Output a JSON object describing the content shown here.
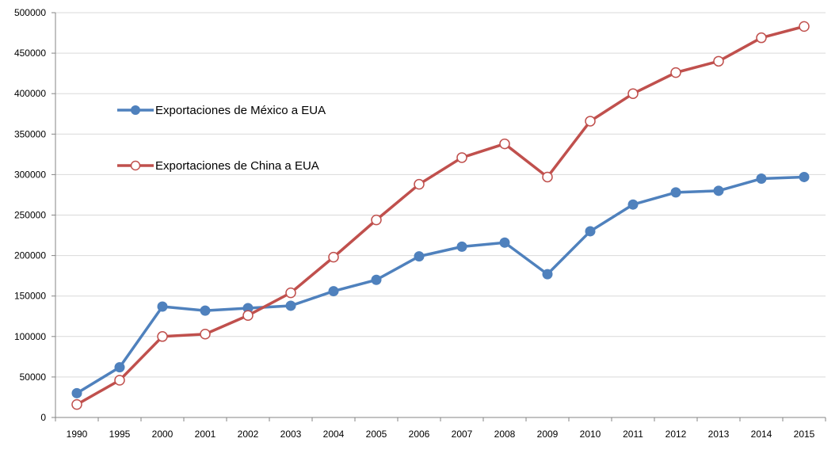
{
  "chart_data": {
    "type": "line",
    "title": "",
    "xlabel": "",
    "ylabel": "",
    "categories": [
      "1990",
      "1995",
      "2000",
      "2001",
      "2002",
      "2003",
      "2004",
      "2005",
      "2006",
      "2007",
      "2008",
      "2009",
      "2010",
      "2011",
      "2012",
      "2013",
      "2014",
      "2015"
    ],
    "ylim": [
      0,
      500000
    ],
    "yticks": [
      0,
      50000,
      100000,
      150000,
      200000,
      250000,
      300000,
      350000,
      400000,
      450000,
      500000
    ],
    "ytick_labels": [
      "0",
      "50000",
      "100000",
      "150000",
      "200000",
      "250000",
      "300000",
      "350000",
      "400000",
      "450000",
      "500000"
    ],
    "grid": "horizontal",
    "legend_position": "upper-left-inside",
    "series": [
      {
        "name": "Exportaciones de México a EUA",
        "color": "#4F81BD",
        "marker": "filled-circle",
        "values": [
          30000,
          62000,
          137000,
          132000,
          135000,
          138000,
          156000,
          170000,
          199000,
          211000,
          216000,
          177000,
          230000,
          263000,
          278000,
          280000,
          295000,
          297000
        ]
      },
      {
        "name": "Exportaciones de China a EUA",
        "color": "#C0504D",
        "marker": "open-circle",
        "values": [
          16000,
          46000,
          100000,
          103000,
          126000,
          154000,
          198000,
          244000,
          288000,
          321000,
          338000,
          297000,
          366000,
          400000,
          426000,
          440000,
          469000,
          483000
        ]
      }
    ]
  },
  "colors": {
    "grid": "#D9D9D9",
    "axis": "#868686",
    "marker_open_fill": "#FFFFFF"
  }
}
